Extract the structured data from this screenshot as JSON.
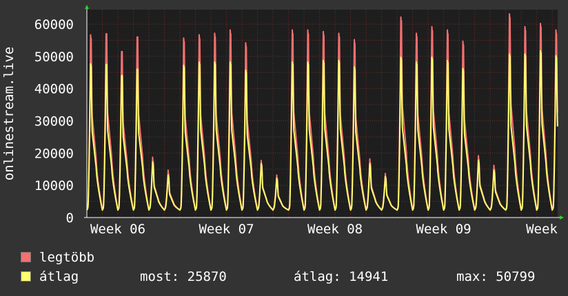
{
  "chart_data": {
    "type": "line",
    "ylabel": "onlinestream.live",
    "ylim": [
      0,
      64500
    ],
    "yticks": [
      0,
      10000,
      20000,
      30000,
      40000,
      50000,
      60000
    ],
    "xticks": [
      {
        "label": "Week 06",
        "day": 2
      },
      {
        "label": "Week 07",
        "day": 9
      },
      {
        "label": "Week 08",
        "day": 16
      },
      {
        "label": "Week 09",
        "day": 23
      },
      {
        "label": "Week",
        "day": 30
      }
    ],
    "xlim_days": [
      0,
      30.35
    ],
    "grid": true,
    "background": "#1e1e1e",
    "grid_color": "#7a3232",
    "series": [
      {
        "name": "legtöbb",
        "color": "#f57070",
        "daily_peaks": [
          55500,
          57000,
          51500,
          56000,
          17500,
          13500,
          54500,
          55500,
          56000,
          57000,
          53000,
          16500,
          12000,
          57000,
          57000,
          56500,
          56000,
          54000,
          17000,
          12500,
          61000,
          56000,
          58000,
          57000,
          53500,
          18000,
          15000,
          62000,
          58000,
          59000,
          57000
        ]
      },
      {
        "name": "átlag",
        "color": "#ffff70",
        "daily_peaks": [
          47000,
          47500,
          44000,
          46000,
          16500,
          12500,
          46500,
          47500,
          47500,
          47500,
          45000,
          16000,
          11500,
          47500,
          47500,
          48000,
          48000,
          46000,
          16000,
          12000,
          49000,
          47500,
          49000,
          48000,
          45500,
          17000,
          14000,
          50000,
          50000,
          51000,
          49500
        ]
      }
    ]
  },
  "legend": {
    "max_label": "legtöbb",
    "avg_label": "átlag",
    "max_color": "#f57070",
    "avg_color": "#ffff70",
    "stat_now": "most: 25870",
    "stat_avg": "átlag: 14941",
    "stat_max": "max: 50799"
  }
}
